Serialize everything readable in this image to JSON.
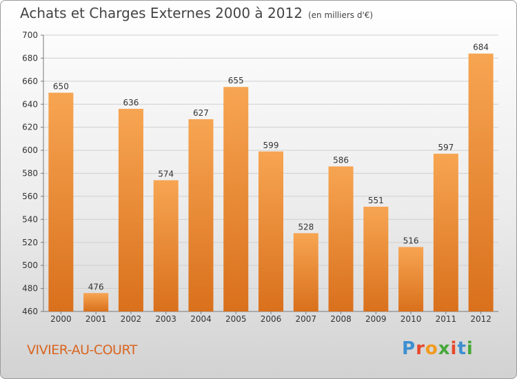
{
  "header": {
    "title": "Achats et Charges Externes 2000 à 2012",
    "unit": "(en milliers d'€)"
  },
  "footer": {
    "town": "VIVIER-AU-COURT",
    "logo_letters": [
      "P",
      "r",
      "o",
      "x",
      "i",
      "t",
      "i"
    ]
  },
  "colors": {
    "bar_top": "#f7a552",
    "bar_bottom": "#d9701c",
    "town": "#d9651f",
    "logo": [
      "#3d8fd1",
      "#e8482b",
      "#f29a1d",
      "#47a83a",
      "#e8482b",
      "#3d8fd1",
      "#47a83a"
    ]
  },
  "chart_data": {
    "type": "bar",
    "title": "Achats et Charges Externes 2000 à 2012",
    "subtitle": "(en milliers d'€)",
    "categories": [
      "2000",
      "2001",
      "2002",
      "2003",
      "2004",
      "2005",
      "2006",
      "2007",
      "2008",
      "2009",
      "2010",
      "2011",
      "2012"
    ],
    "values": [
      650,
      476,
      636,
      574,
      627,
      655,
      599,
      528,
      586,
      551,
      516,
      597,
      684
    ],
    "ylim": [
      460,
      700
    ],
    "yticks": [
      460,
      480,
      500,
      520,
      540,
      560,
      580,
      600,
      620,
      640,
      660,
      680,
      700
    ],
    "grid": true,
    "legend": "none"
  }
}
